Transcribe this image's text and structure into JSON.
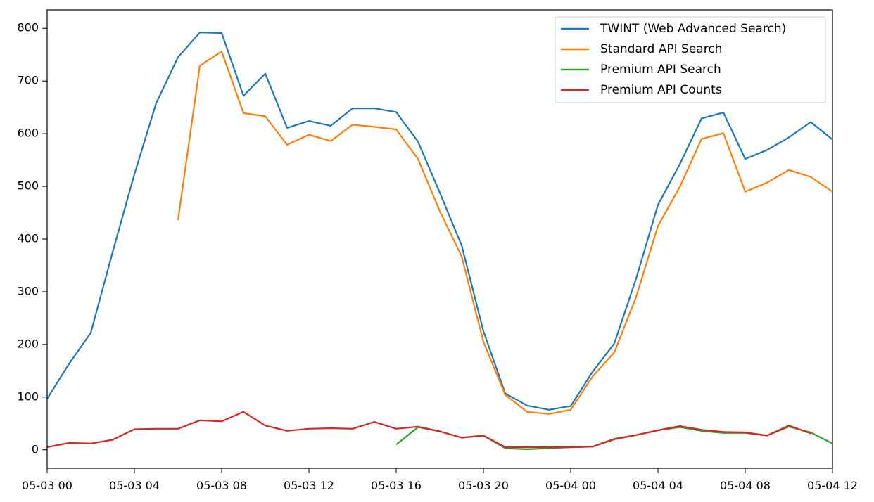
{
  "chart_data": {
    "type": "line",
    "title": "",
    "xlabel": "",
    "ylabel": "",
    "x": [
      "05-03 00:00",
      "05-03 01:00",
      "05-03 02:00",
      "05-03 03:00",
      "05-03 04:00",
      "05-03 05:00",
      "05-03 06:00",
      "05-03 07:00",
      "05-03 08:00",
      "05-03 09:00",
      "05-03 10:00",
      "05-03 11:00",
      "05-03 12:00",
      "05-03 13:00",
      "05-03 14:00",
      "05-03 15:00",
      "05-03 16:00",
      "05-03 17:00",
      "05-03 18:00",
      "05-03 19:00",
      "05-03 20:00",
      "05-03 21:00",
      "05-03 22:00",
      "05-03 23:00",
      "05-04 00:00",
      "05-04 01:00",
      "05-04 02:00",
      "05-04 03:00",
      "05-04 04:00",
      "05-04 05:00",
      "05-04 06:00",
      "05-04 07:00",
      "05-04 08:00",
      "05-04 09:00",
      "05-04 10:00",
      "05-04 11:00",
      "05-04 12:00"
    ],
    "xlim": [
      "05-03 00:00",
      "05-04 12:00"
    ],
    "ylim": [
      -35,
      835
    ],
    "x_ticks": [
      "05-03 00",
      "05-03 04",
      "05-03 08",
      "05-03 12",
      "05-03 16",
      "05-03 20",
      "05-04 00",
      "05-04 04",
      "05-04 08",
      "05-04 12"
    ],
    "y_ticks": [
      0,
      100,
      200,
      300,
      400,
      500,
      600,
      700,
      800
    ],
    "grid": false,
    "legend_position": "top-right",
    "series": [
      {
        "name": "TWINT (Web Advanced Search)",
        "color": "#1f77b4",
        "values": [
          97,
          163,
          222,
          375,
          523,
          658,
          745,
          792,
          791,
          672,
          714,
          611,
          624,
          615,
          648,
          648,
          641,
          585,
          488,
          388,
          225,
          107,
          84,
          76,
          83,
          148,
          202,
          325,
          465,
          542,
          629,
          640,
          552,
          569,
          593,
          622,
          589
        ]
      },
      {
        "name": "Standard API Search",
        "color": "#ff7f0e",
        "values": [
          null,
          null,
          null,
          null,
          null,
          null,
          436,
          729,
          756,
          639,
          633,
          579,
          598,
          586,
          617,
          613,
          608,
          552,
          453,
          367,
          205,
          104,
          72,
          68,
          76,
          139,
          185,
          290,
          425,
          499,
          590,
          601,
          490,
          507,
          531,
          518,
          490
        ]
      },
      {
        "name": "Premium API Search",
        "color": "#2ca02c",
        "values": [
          null,
          null,
          null,
          null,
          null,
          null,
          null,
          null,
          null,
          null,
          null,
          null,
          null,
          null,
          null,
          null,
          10,
          43,
          35,
          23,
          27,
          3,
          1,
          3,
          5,
          6,
          21,
          28,
          37,
          43,
          36,
          32,
          32,
          27,
          44,
          33,
          12
        ]
      },
      {
        "name": "Premium API Counts",
        "color": "#d62728",
        "values": [
          5,
          13,
          12,
          19,
          39,
          40,
          40,
          56,
          54,
          72,
          46,
          36,
          40,
          41,
          40,
          53,
          40,
          44,
          35,
          23,
          27,
          5,
          5,
          5,
          5,
          6,
          20,
          28,
          37,
          45,
          38,
          34,
          33,
          27,
          46,
          31,
          null
        ]
      }
    ]
  }
}
